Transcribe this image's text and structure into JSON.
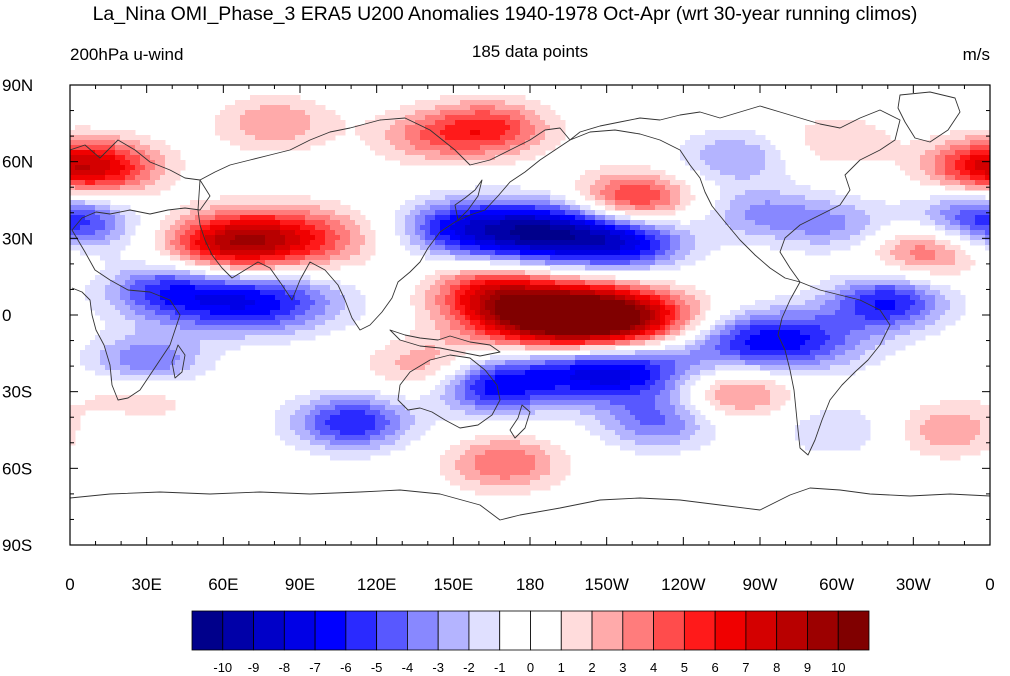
{
  "title": "La_Nina OMI_Phase_3 ERA5 U200 Anomalies 1940-1978 Oct-Apr (wrt 30-year running climos)",
  "left_label": "200hPa u-wind",
  "center_label": "185 data points",
  "right_label": "m/s",
  "lat_ticks": [
    "90N",
    "60N",
    "30N",
    "0",
    "30S",
    "60S",
    "90S"
  ],
  "lon_ticks": [
    "0",
    "30E",
    "60E",
    "90E",
    "120E",
    "150E",
    "180",
    "150W",
    "120W",
    "90W",
    "60W",
    "30W",
    "0"
  ],
  "colorbar": {
    "labels": [
      "-10",
      "-9",
      "-8",
      "-7",
      "-6",
      "-5",
      "-4",
      "-3",
      "-2",
      "-1",
      "0",
      "1",
      "2",
      "3",
      "4",
      "5",
      "6",
      "7",
      "8",
      "9",
      "10"
    ],
    "colors": [
      "#00008b",
      "#0000a8",
      "#0000c8",
      "#0000e6",
      "#0000ff",
      "#2a2aff",
      "#5858ff",
      "#8888ff",
      "#b4b4ff",
      "#e0e0ff",
      "#ffffff",
      "#ffffff",
      "#ffdcdc",
      "#ffaaaa",
      "#ff7c7c",
      "#ff4c4c",
      "#ff1a1a",
      "#f00000",
      "#d40000",
      "#b80000",
      "#9c0000",
      "#800000"
    ]
  },
  "chart_data": {
    "type": "heatmap",
    "variable": "200hPa u-wind anomaly",
    "units": "m/s",
    "lon_range": [
      0,
      360
    ],
    "lat_range": [
      -90,
      90
    ],
    "levels": [
      -10,
      -9,
      -8,
      -7,
      -6,
      -5,
      -4,
      -3,
      -2,
      -1,
      0,
      1,
      2,
      3,
      4,
      5,
      6,
      7,
      8,
      9,
      10
    ],
    "anomaly_centers": [
      {
        "lon": 190,
        "lat": 0,
        "value": 10
      },
      {
        "lon": 212,
        "lat": -2,
        "value": 8
      },
      {
        "lon": 165,
        "lat": 10,
        "value": 5
      },
      {
        "lon": 185,
        "lat": 32,
        "value": -10
      },
      {
        "lon": 220,
        "lat": 28,
        "value": -5
      },
      {
        "lon": 150,
        "lat": 35,
        "value": -4
      },
      {
        "lon": 80,
        "lat": 30,
        "value": 7
      },
      {
        "lon": 60,
        "lat": 27,
        "value": 4
      },
      {
        "lon": 70,
        "lat": 5,
        "value": -7
      },
      {
        "lon": 35,
        "lat": 10,
        "value": -4
      },
      {
        "lon": 30,
        "lat": -18,
        "value": -4
      },
      {
        "lon": 210,
        "lat": -22,
        "value": -8
      },
      {
        "lon": 165,
        "lat": -28,
        "value": -6
      },
      {
        "lon": 110,
        "lat": -42,
        "value": -6
      },
      {
        "lon": 275,
        "lat": -10,
        "value": -7
      },
      {
        "lon": 320,
        "lat": 5,
        "value": -6
      },
      {
        "lon": 270,
        "lat": 40,
        "value": -3
      },
      {
        "lon": 300,
        "lat": 35,
        "value": -3
      },
      {
        "lon": 335,
        "lat": 25,
        "value": 4
      },
      {
        "lon": 350,
        "lat": 40,
        "value": -3
      },
      {
        "lon": 5,
        "lat": 35,
        "value": -4
      },
      {
        "lon": 15,
        "lat": 58,
        "value": 5
      },
      {
        "lon": 355,
        "lat": 58,
        "value": 5
      },
      {
        "lon": 220,
        "lat": 45,
        "value": 6
      },
      {
        "lon": 165,
        "lat": 73,
        "value": 5
      },
      {
        "lon": 80,
        "lat": 75,
        "value": 3
      },
      {
        "lon": 140,
        "lat": 70,
        "value": 3
      },
      {
        "lon": 260,
        "lat": 62,
        "value": -3
      },
      {
        "lon": 300,
        "lat": 68,
        "value": 2
      },
      {
        "lon": 260,
        "lat": -30,
        "value": 4
      },
      {
        "lon": 345,
        "lat": -45,
        "value": 3
      },
      {
        "lon": 170,
        "lat": -58,
        "value": 4
      },
      {
        "lon": 230,
        "lat": -42,
        "value": -4
      },
      {
        "lon": 25,
        "lat": -35,
        "value": 3
      },
      {
        "lon": 140,
        "lat": -20,
        "value": 3
      },
      {
        "lon": 300,
        "lat": -45,
        "value": -2
      },
      {
        "lon": 20,
        "lat": -42,
        "value": -2
      }
    ]
  }
}
